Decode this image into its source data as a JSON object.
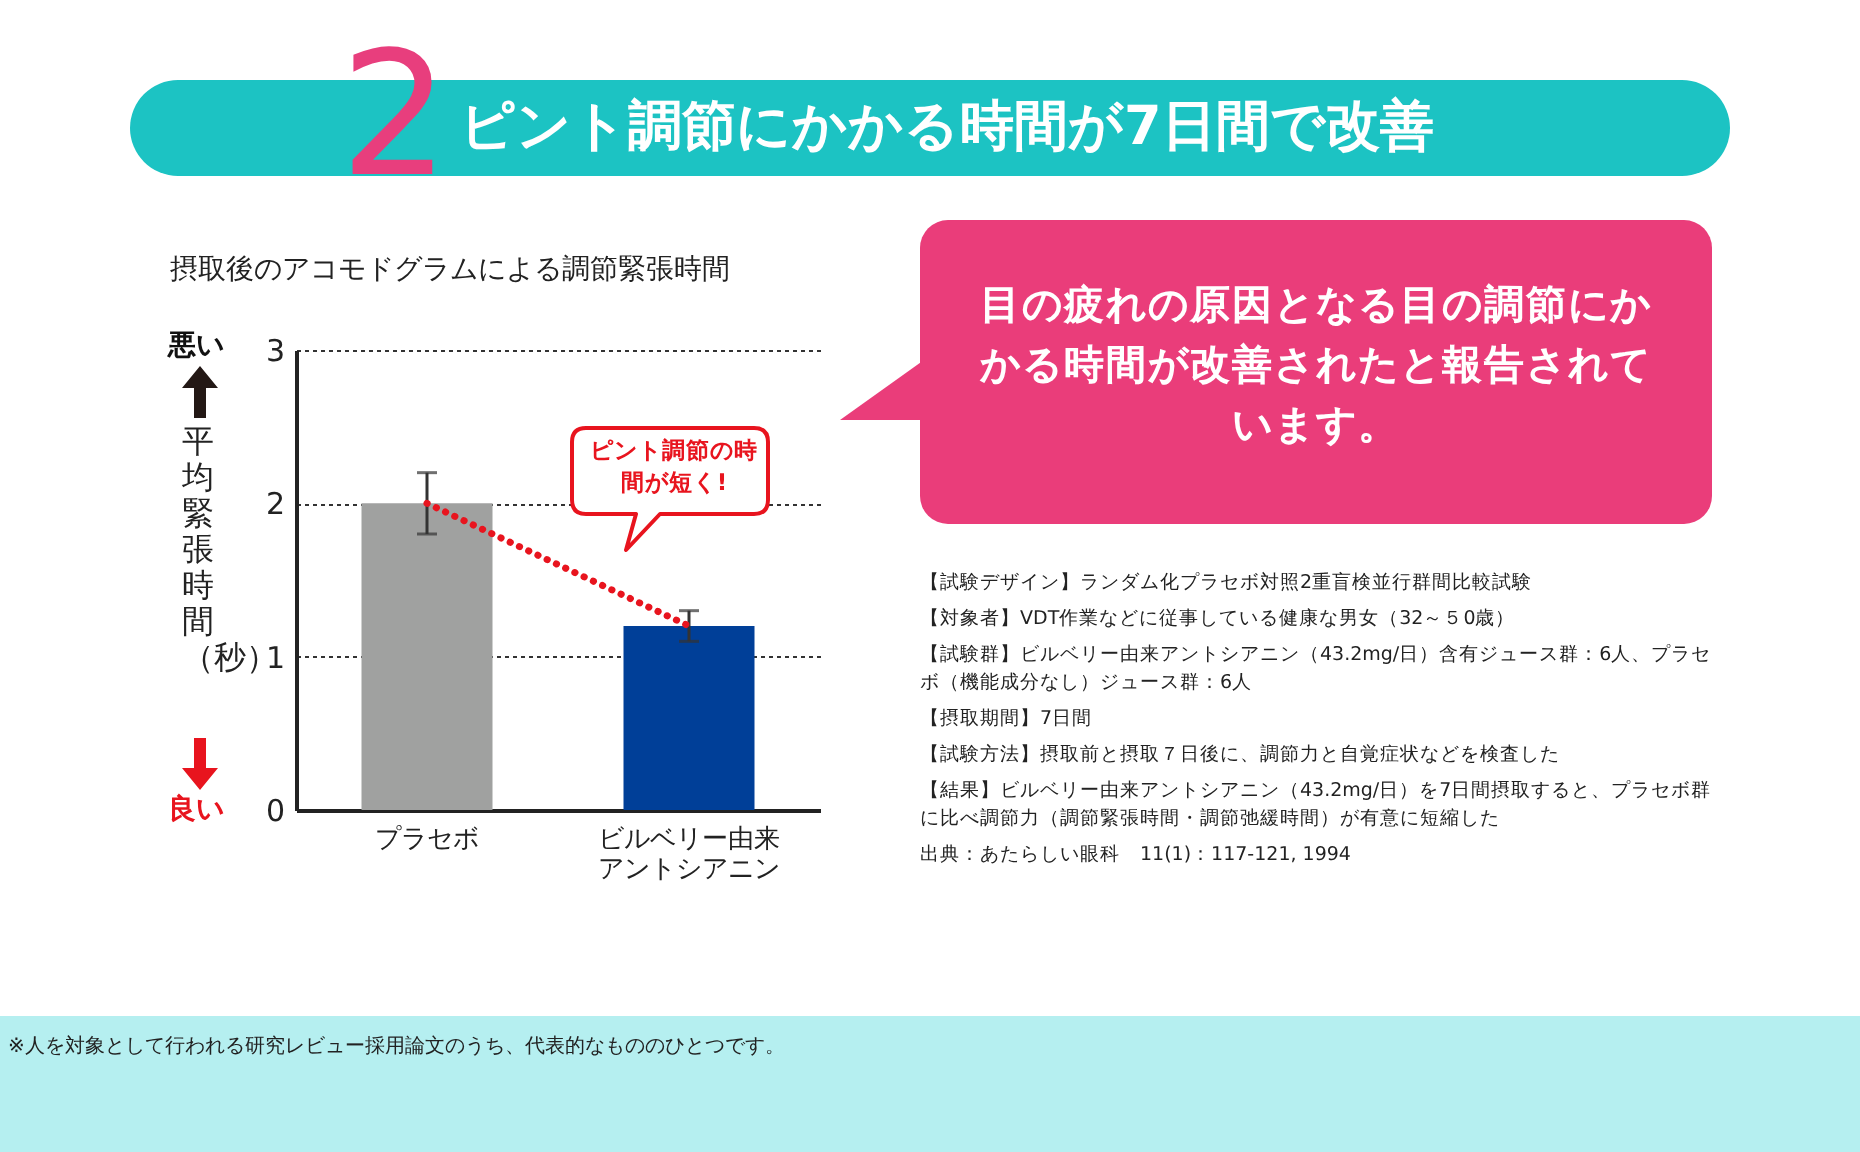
{
  "chart_data": {
    "type": "bar",
    "title": "ピント調節にかかる時間が7日間で改善",
    "subtitle": "摂取後のアコモドグラムによる調節緊張時間",
    "ylabel": "平均緊張時間（秒）",
    "categories": [
      "プラセボ",
      "ビルベリー由来アントシアニン"
    ],
    "series": [
      {
        "colors": [
          "#a0a1a0",
          "#003f98"
        ],
        "values": [
          2.0,
          1.2
        ],
        "errors": [
          [
            1.8,
            2.2
          ],
          [
            1.1,
            1.3
          ]
        ]
      },
      {
        "type": "line",
        "color": "#e8141e",
        "values": [
          2.0,
          1.2
        ],
        "line_style": "dotted"
      }
    ],
    "ylim": [
      0,
      3
    ],
    "yticks": [
      0,
      1,
      2,
      3
    ],
    "grid": "y",
    "annotations": [
      "2",
      "悪い",
      "良い",
      "ピント調節の時間が短く!",
      "目の疲れの原因となる目の調節にかかる時間が改善されたと報告されています。",
      "【試験デザイン】ランダム化プラセボ対照2重盲検並行群間比較試験",
      "【対象者】VDT作業などに従事している健康な男女（32～５0歳）",
      "【試験群】ビルベリー由来アントシアニン（43.2mg/日）含有ジュース群：6人、プラセボ（機能成分なし）ジュース群：6人",
      "【摂取期間】7日間",
      "【試験方法】摂取前と摂取７日後に、調節力と自覚症状などを検査した",
      "【結果】ビルベリー由来アントシアニン（43.2mg/日）を7日間摂取すると、プラセボ群に比べ調節力（調節緊張時間・調節弛緩時間）が有意に短縮した",
      "出典：あたらしい眼科　11(1)：117-121, 1994",
      "※人を対象として行われる研究レビュー採用論文のうち、代表的なもののひとつです。"
    ]
  }
}
